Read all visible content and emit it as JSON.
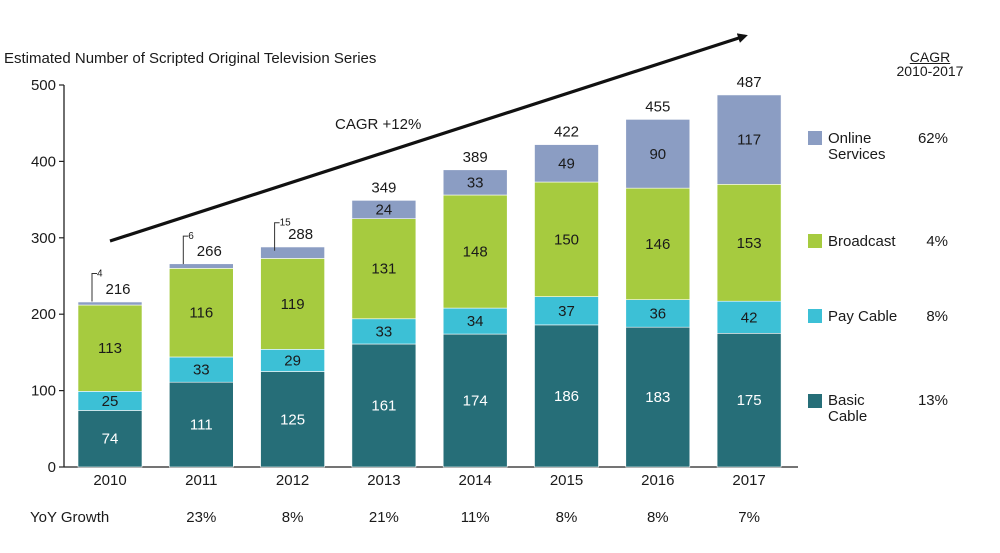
{
  "chart_data": {
    "type": "bar",
    "stacked": true,
    "title": "Estimated Number of Scripted Original Television Series",
    "categories": [
      "2010",
      "2011",
      "2012",
      "2013",
      "2014",
      "2015",
      "2016",
      "2017"
    ],
    "series": [
      {
        "name": "Basic Cable",
        "color": "#266e78",
        "label_color": "#ffffff",
        "values": [
          74,
          111,
          125,
          161,
          174,
          186,
          183,
          175
        ]
      },
      {
        "name": "Pay Cable",
        "color": "#3cc0d6",
        "label_color": "#1a1a1a",
        "values": [
          25,
          33,
          29,
          33,
          34,
          37,
          36,
          42
        ]
      },
      {
        "name": "Broadcast",
        "color": "#a6cb3f",
        "label_color": "#1a1a1a",
        "values": [
          113,
          116,
          119,
          131,
          148,
          150,
          146,
          153
        ]
      },
      {
        "name": "Online Services",
        "color": "#8b9dc3",
        "label_color": "#1a1a1a",
        "values": [
          4,
          6,
          15,
          24,
          33,
          49,
          90,
          117
        ]
      }
    ],
    "totals": [
      "216",
      "266",
      "288",
      "349",
      "389",
      "422",
      "455",
      "487"
    ],
    "callouts": [
      "4",
      "6",
      "15"
    ],
    "ylim": [
      0,
      500
    ],
    "yticks": [
      "0",
      "100",
      "200",
      "300",
      "400",
      "500"
    ],
    "trend_label": "CAGR +12%",
    "cagr_header_line1": "CAGR",
    "cagr_header_line2": "2010-2017",
    "legend": [
      {
        "name": "Online Services",
        "line1": "Online",
        "line2": "Services",
        "cagr": "62%",
        "color": "#8b9dc3"
      },
      {
        "name": "Broadcast",
        "line1": "Broadcast",
        "line2": "",
        "cagr": "4%",
        "color": "#a6cb3f"
      },
      {
        "name": "Pay Cable",
        "line1": "Pay Cable",
        "line2": "",
        "cagr": "8%",
        "color": "#3cc0d6"
      },
      {
        "name": "Basic Cable",
        "line1": "Basic",
        "line2": "Cable",
        "cagr": "13%",
        "color": "#266e78"
      }
    ],
    "yoy_label": "YoY Growth",
    "yoy": [
      "",
      "23%",
      "8%",
      "21%",
      "11%",
      "8%",
      "8%",
      "7%"
    ]
  }
}
